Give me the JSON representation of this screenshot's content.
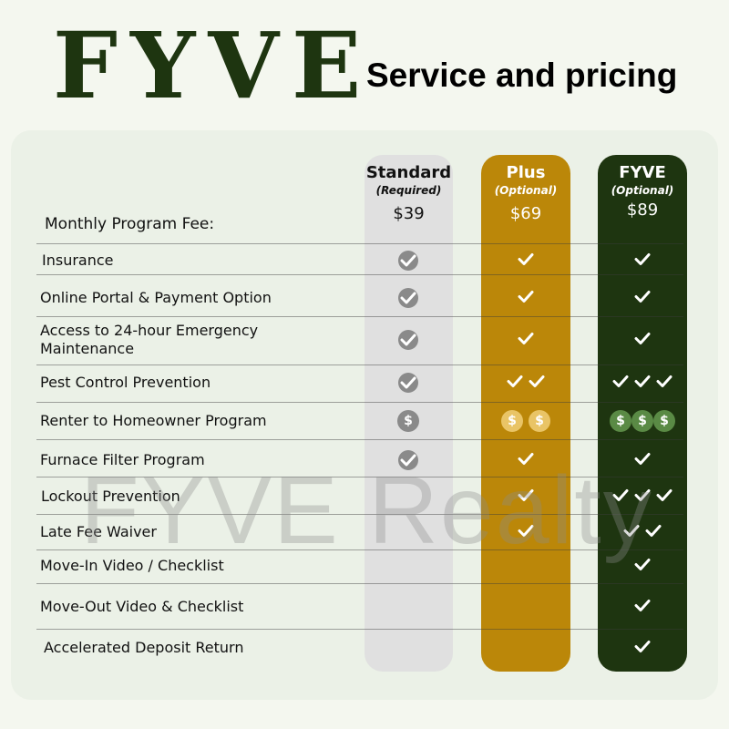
{
  "header": {
    "logo": "FYVE",
    "title": "Service and pricing"
  },
  "watermark": "FYVE Realty",
  "colors": {
    "standard": "#e0e0e0",
    "plus": "#bb8709",
    "fyve": "#1e3510",
    "standard_icon": "#8a8a8a",
    "plus_dollar": "#e9c466",
    "fyve_dollar": "#5a8a45"
  },
  "plans": [
    {
      "name": "Standard",
      "note": "(Required)",
      "price": "$39"
    },
    {
      "name": "Plus",
      "note": "(Optional)",
      "price": "$69"
    },
    {
      "name": "FYVE",
      "note": "(Optional)",
      "price": "$89"
    }
  ],
  "fee_label": "Monthly Program Fee:",
  "rows": [
    {
      "label": "Insurance",
      "cells": [
        [
          "check-circle",
          1
        ],
        [
          "check",
          1
        ],
        [
          "check",
          1
        ]
      ]
    },
    {
      "label": "Online Portal & Payment Option",
      "cells": [
        [
          "check-circle",
          1
        ],
        [
          "check",
          1
        ],
        [
          "check",
          1
        ]
      ]
    },
    {
      "label": "Access to 24-hour Emergency Maintenance",
      "cells": [
        [
          "check-circle",
          1
        ],
        [
          "check",
          1
        ],
        [
          "check",
          1
        ]
      ]
    },
    {
      "label": "Pest Control Prevention",
      "cells": [
        [
          "check-circle",
          1
        ],
        [
          "check",
          2
        ],
        [
          "check",
          3
        ]
      ]
    },
    {
      "label": "Renter to Homeowner Program",
      "cells": [
        [
          "dollar",
          1
        ],
        [
          "dollar",
          2
        ],
        [
          "dollar",
          3
        ]
      ]
    },
    {
      "label": "Furnace Filter Program",
      "cells": [
        [
          "check-circle",
          1
        ],
        [
          "check",
          1
        ],
        [
          "check",
          1
        ]
      ]
    },
    {
      "label": "Lockout Prevention",
      "cells": [
        [
          "none",
          0
        ],
        [
          "check",
          1
        ],
        [
          "check",
          3
        ]
      ]
    },
    {
      "label": "Late Fee Waiver",
      "cells": [
        [
          "none",
          0
        ],
        [
          "check",
          1
        ],
        [
          "check",
          2
        ]
      ]
    },
    {
      "label": "Move-In Video / Checklist",
      "cells": [
        [
          "none",
          0
        ],
        [
          "none",
          0
        ],
        [
          "check",
          1
        ]
      ]
    },
    {
      "label": "Move-Out Video & Checklist",
      "cells": [
        [
          "none",
          0
        ],
        [
          "none",
          0
        ],
        [
          "check",
          1
        ]
      ]
    },
    {
      "label": "Accelerated Deposit Return",
      "cells": [
        [
          "none",
          0
        ],
        [
          "none",
          0
        ],
        [
          "check",
          1
        ]
      ]
    }
  ]
}
